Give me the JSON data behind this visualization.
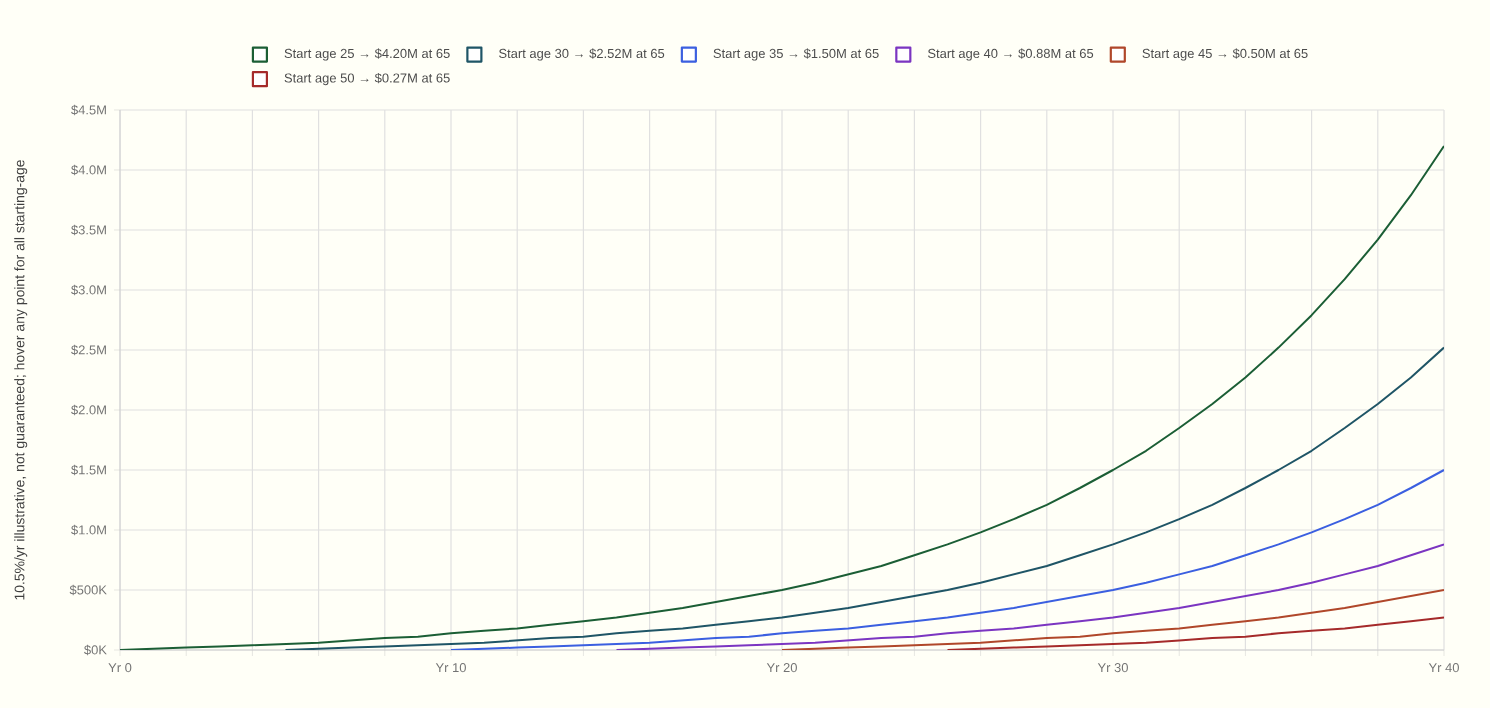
{
  "chart_data": {
    "type": "line",
    "ylabel": "10.5%/yr illustrative, not guaranteed; hover any point for all starting-age",
    "categories": [
      "Yr 0",
      null,
      null,
      null,
      null,
      null,
      null,
      null,
      null,
      null,
      "Yr 10",
      null,
      null,
      null,
      null,
      null,
      null,
      null,
      null,
      null,
      "Yr 20",
      null,
      null,
      null,
      null,
      null,
      null,
      null,
      null,
      null,
      "Yr 30",
      null,
      null,
      null,
      null,
      null,
      null,
      null,
      null,
      null,
      "Yr 40"
    ],
    "ylim": [
      0,
      4500000
    ],
    "yticks": [
      {
        "value": 0,
        "label": "$0K"
      },
      {
        "value": 500000,
        "label": "$500K"
      },
      {
        "value": 1000000,
        "label": "$1.0M"
      },
      {
        "value": 1500000,
        "label": "$1.5M"
      },
      {
        "value": 2000000,
        "label": "$2.0M"
      },
      {
        "value": 2500000,
        "label": "$2.5M"
      },
      {
        "value": 3000000,
        "label": "$3.0M"
      },
      {
        "value": 3500000,
        "label": "$3.5M"
      },
      {
        "value": 4000000,
        "label": "$4.0M"
      },
      {
        "value": 4500000,
        "label": "$4.5M"
      }
    ],
    "grid": true,
    "legend": "top",
    "marker": "none",
    "line_style": "solid",
    "series": [
      {
        "name": "Start age 25 → $4.20M at 65",
        "color": "#1b5e35",
        "values": [
          0,
          10000,
          20000,
          30000,
          40000,
          50000,
          60000,
          80000,
          100000,
          110000,
          140000,
          160000,
          180000,
          210000,
          240000,
          270000,
          310000,
          350000,
          400000,
          450000,
          500000,
          560000,
          630000,
          700000,
          790000,
          880000,
          980000,
          1090000,
          1210000,
          1350000,
          1500000,
          1660000,
          1850000,
          2050000,
          2270000,
          2520000,
          2790000,
          3090000,
          3420000,
          3790000,
          4200000
        ]
      },
      {
        "name": "Start age 30 → $2.52M at 65",
        "color": "#1f5566",
        "values": [
          null,
          null,
          null,
          null,
          null,
          0,
          10000,
          20000,
          30000,
          40000,
          50000,
          60000,
          80000,
          100000,
          110000,
          140000,
          160000,
          180000,
          210000,
          240000,
          270000,
          310000,
          350000,
          400000,
          450000,
          500000,
          560000,
          630000,
          700000,
          790000,
          880000,
          980000,
          1090000,
          1210000,
          1350000,
          1500000,
          1660000,
          1850000,
          2050000,
          2270000,
          2520000
        ]
      },
      {
        "name": "Start age 35 → $1.50M at 65",
        "color": "#3b5fe0",
        "values": [
          null,
          null,
          null,
          null,
          null,
          null,
          null,
          null,
          null,
          null,
          0,
          10000,
          20000,
          30000,
          40000,
          50000,
          60000,
          80000,
          100000,
          110000,
          140000,
          160000,
          180000,
          210000,
          240000,
          270000,
          310000,
          350000,
          400000,
          450000,
          500000,
          560000,
          630000,
          700000,
          790000,
          880000,
          980000,
          1090000,
          1210000,
          1350000,
          1500000
        ]
      },
      {
        "name": "Start age 40 → $0.88M at 65",
        "color": "#7b35c1",
        "values": [
          null,
          null,
          null,
          null,
          null,
          null,
          null,
          null,
          null,
          null,
          null,
          null,
          null,
          null,
          null,
          0,
          10000,
          20000,
          30000,
          40000,
          50000,
          60000,
          80000,
          100000,
          110000,
          140000,
          160000,
          180000,
          210000,
          240000,
          270000,
          310000,
          350000,
          400000,
          450000,
          500000,
          560000,
          630000,
          700000,
          790000,
          880000
        ]
      },
      {
        "name": "Start age 45 → $0.50M at 65",
        "color": "#b0472a",
        "values": [
          null,
          null,
          null,
          null,
          null,
          null,
          null,
          null,
          null,
          null,
          null,
          null,
          null,
          null,
          null,
          null,
          null,
          null,
          null,
          null,
          0,
          10000,
          20000,
          30000,
          40000,
          50000,
          60000,
          80000,
          100000,
          110000,
          140000,
          160000,
          180000,
          210000,
          240000,
          270000,
          310000,
          350000,
          400000,
          450000,
          500000
        ]
      },
      {
        "name": "Start age 50 → $0.27M at 65",
        "color": "#a52a2a",
        "values": [
          null,
          null,
          null,
          null,
          null,
          null,
          null,
          null,
          null,
          null,
          null,
          null,
          null,
          null,
          null,
          null,
          null,
          null,
          null,
          null,
          null,
          null,
          null,
          null,
          null,
          0,
          10000,
          20000,
          30000,
          40000,
          50000,
          60000,
          80000,
          100000,
          110000,
          140000,
          160000,
          180000,
          210000,
          240000,
          270000
        ]
      }
    ]
  }
}
